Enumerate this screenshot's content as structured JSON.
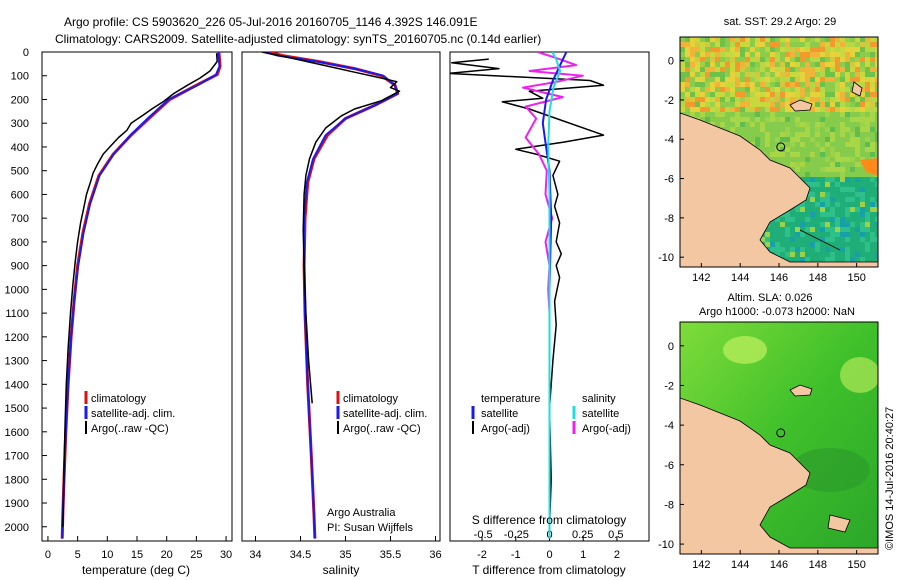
{
  "header": {
    "line1": "Argo profile: CS 5903620_226 05-Jul-2016 20160705_1146 4.392S 146.091E",
    "line2": "Climatology: CARS2009. Satellite-adjusted climatology: synTS_20160705.nc (0.14d earlier)"
  },
  "colors": {
    "climatology": "#dd1111",
    "satellite": "#1a1aee",
    "argo": "#000000",
    "salinity_satellite": "#22dddd",
    "salinity_argo": "#ee22ee",
    "land": "#f4c7a3"
  },
  "chart_data": [
    {
      "type": "line",
      "id": "temperature",
      "xlabel": "temperature (deg C)",
      "xlim": [
        -1,
        31
      ],
      "xticks": [
        "0",
        "5",
        "10",
        "15",
        "20",
        "25",
        "30"
      ],
      "xtick_values": [
        0,
        5,
        10,
        15,
        20,
        25,
        30
      ],
      "ylim": [
        0,
        2060
      ],
      "yticks": [
        "0",
        "100",
        "200",
        "300",
        "400",
        "500",
        "600",
        "700",
        "800",
        "900",
        "1000",
        "1100",
        "1200",
        "1300",
        "1400",
        "1500",
        "1600",
        "1700",
        "1800",
        "1900",
        "2000"
      ],
      "ytick_values": [
        0,
        100,
        200,
        300,
        400,
        500,
        600,
        700,
        800,
        900,
        1000,
        1100,
        1200,
        1300,
        1400,
        1500,
        1600,
        1700,
        1800,
        1900,
        2000
      ],
      "legend": [
        "climatology",
        "satellite-adj. clim.",
        "Argo(..raw -QC)"
      ],
      "series": [
        {
          "name": "climatology",
          "x": [
            28.8,
            29.0,
            28.5,
            25.0,
            20.5,
            17.0,
            14.0,
            11.0,
            8.6,
            7.0,
            5.9,
            5.0,
            4.4,
            3.9,
            3.4,
            3.0,
            2.7,
            2.5,
            2.4
          ],
          "depth": [
            0,
            60,
            95,
            140,
            200,
            280,
            350,
            430,
            520,
            640,
            760,
            900,
            1050,
            1200,
            1400,
            1600,
            1800,
            1950,
            2050
          ]
        },
        {
          "name": "satellite",
          "x": [
            28.7,
            28.9,
            28.3,
            25.2,
            20.3,
            16.8,
            13.9,
            11.1,
            8.7,
            7.1,
            6.0,
            5.1,
            4.4,
            3.9,
            3.4,
            3.0,
            2.7,
            2.5,
            2.4
          ],
          "depth": [
            0,
            60,
            95,
            140,
            200,
            280,
            350,
            430,
            520,
            640,
            760,
            900,
            1050,
            1200,
            1400,
            1600,
            1800,
            1950,
            2050
          ]
        },
        {
          "name": "argo",
          "x": [
            28.4,
            28.5,
            27.3,
            25.6,
            23.5,
            21.2,
            19.4,
            17.5,
            16.1,
            14.0,
            13.3,
            11.9,
            10.6,
            9.3,
            8.4,
            7.6,
            7.2,
            6.5,
            6.0,
            5.5,
            5.0,
            4.6,
            4.2,
            3.8,
            3.4,
            3.1,
            2.9,
            2.7,
            2.6,
            2.5
          ],
          "depth": [
            5,
            40,
            80,
            110,
            140,
            175,
            210,
            240,
            265,
            300,
            330,
            360,
            395,
            430,
            470,
            510,
            545,
            600,
            660,
            720,
            800,
            880,
            980,
            1100,
            1250,
            1400,
            1550,
            1750,
            1900,
            2000
          ]
        }
      ]
    },
    {
      "type": "line",
      "id": "salinity",
      "xlabel": "salinity",
      "xlim": [
        33.85,
        36.05
      ],
      "xticks": [
        "34",
        "34.5",
        "35",
        "35.5",
        "36"
      ],
      "xtick_values": [
        34,
        34.5,
        35,
        35.5,
        36
      ],
      "legend": [
        "climatology",
        "satellite-adj. clim.",
        "Argo(..raw -QC)"
      ],
      "annotation": [
        "Argo Australia",
        "PI: Susan Wijffels"
      ],
      "series": [
        {
          "name": "climatology",
          "x": [
            34.15,
            34.3,
            34.7,
            35.1,
            35.4,
            35.55,
            35.58,
            35.35,
            35.0,
            34.8,
            34.65,
            34.58,
            34.55,
            34.54,
            34.55,
            34.58,
            34.62,
            34.65,
            34.66
          ],
          "depth": [
            0,
            15,
            40,
            70,
            100,
            140,
            175,
            220,
            280,
            350,
            450,
            550,
            700,
            900,
            1100,
            1400,
            1700,
            1950,
            2050
          ]
        },
        {
          "name": "satellite",
          "x": [
            34.1,
            34.25,
            34.68,
            35.1,
            35.42,
            35.55,
            35.58,
            35.35,
            35.0,
            34.78,
            34.64,
            34.57,
            34.54,
            34.54,
            34.55,
            34.58,
            34.62,
            34.65,
            34.66
          ],
          "depth": [
            0,
            15,
            40,
            70,
            100,
            140,
            175,
            220,
            280,
            350,
            450,
            550,
            700,
            900,
            1100,
            1400,
            1700,
            1950,
            2050
          ]
        },
        {
          "name": "argo",
          "x": [
            34.07,
            34.2,
            34.45,
            34.75,
            35.1,
            35.4,
            35.57,
            35.5,
            35.6,
            35.4,
            35.1,
            34.95,
            34.78,
            34.67,
            34.6,
            34.56,
            34.54,
            34.53,
            34.54,
            34.56,
            34.59,
            34.63
          ],
          "depth": [
            0,
            10,
            30,
            55,
            85,
            110,
            125,
            150,
            165,
            205,
            240,
            270,
            320,
            380,
            450,
            520,
            600,
            750,
            900,
            1100,
            1300,
            1480
          ]
        }
      ]
    },
    {
      "type": "line",
      "id": "difference",
      "xlabel": "T difference from climatology",
      "xlabel2": "S difference from climatology",
      "xlim": [
        -2.95,
        2.95
      ],
      "xticks": [
        "-2",
        "-1",
        "0",
        "1",
        "2"
      ],
      "xtick_values": [
        -2,
        -1,
        0,
        1,
        2
      ],
      "xticks_s": [
        "-0.5",
        "-0.25",
        "0",
        "0.25",
        "0.5"
      ],
      "xtick_values_s": [
        -0.5,
        -0.25,
        0,
        0.25,
        0.5
      ],
      "legend": {
        "col1_title": "temperature",
        "col2_title": "salinity",
        "items": [
          "satellite",
          "Argo(-adj)",
          "satellite",
          "Argo(-adj)"
        ]
      },
      "series": [
        {
          "name": "T satellite",
          "x": [
            0.5,
            0.3,
            0.1,
            -0.1,
            -0.2,
            -0.1,
            0.0,
            0.05,
            0.0,
            0.0,
            0.0
          ],
          "depth": [
            0,
            60,
            120,
            200,
            300,
            400,
            500,
            700,
            1000,
            1500,
            2050
          ]
        },
        {
          "name": "T argo",
          "x": [
            -1.8,
            -2.9,
            -1.5,
            -3.0,
            1.2,
            1.6,
            -0.6,
            -0.2,
            -1.4,
            -0.6,
            1.6,
            0.4,
            -1.0,
            -0.4,
            0.3,
            0.1,
            0.25,
            0.15,
            0.3,
            0.2,
            0.35,
            0.2,
            0.3,
            0.15,
            0.2,
            0.1,
            0.0,
            0.05,
            0.0
          ],
          "depth": [
            30,
            45,
            70,
            90,
            120,
            140,
            165,
            195,
            210,
            240,
            350,
            380,
            410,
            430,
            460,
            520,
            600,
            650,
            720,
            800,
            850,
            900,
            950,
            1050,
            1150,
            1300,
            1500,
            1800,
            2000
          ]
        },
        {
          "name": "S satellite",
          "x": [
            0.02,
            0.05,
            0.08,
            0.03,
            0.0,
            -0.01,
            0.0,
            0.0,
            0.0,
            0.0
          ],
          "depth": [
            0,
            30,
            80,
            150,
            250,
            400,
            600,
            900,
            1400,
            2050
          ]
        },
        {
          "name": "S argo",
          "x": [
            -0.09,
            0.05,
            0.2,
            -0.15,
            0.25,
            0.06,
            -0.2,
            0.1,
            -0.18,
            -0.1,
            -0.18,
            -0.08,
            -0.02,
            -0.03,
            0.02,
            -0.03,
            0.0,
            -0.01,
            0.0
          ],
          "depth": [
            0,
            25,
            55,
            80,
            100,
            125,
            150,
            190,
            230,
            280,
            360,
            430,
            500,
            600,
            700,
            800,
            900,
            1000,
            1100
          ]
        }
      ]
    },
    {
      "type": "heatmap",
      "id": "sst-map",
      "title": "sat. SST: 29.2 Argo: 29",
      "xticks": [
        "142",
        "144",
        "146",
        "148",
        "150"
      ],
      "xtick_values": [
        142,
        144,
        146,
        148,
        150
      ],
      "yticks": [
        "0",
        "-2",
        "-4",
        "-6",
        "-8",
        "-10"
      ],
      "ytick_values": [
        0,
        -2,
        -4,
        -6,
        -8,
        -10
      ],
      "xlim": [
        140.9,
        151.1
      ],
      "ylim": [
        -10.5,
        1.2
      ],
      "float_position": [
        146.091,
        -4.392
      ]
    },
    {
      "type": "heatmap",
      "id": "sla-map",
      "title": "Altim. SLA: 0.026",
      "subtitle": "Argo h1000: -0.073 h2000: NaN",
      "xticks": [
        "142",
        "144",
        "146",
        "148",
        "150"
      ],
      "xtick_values": [
        142,
        144,
        146,
        148,
        150
      ],
      "yticks": [
        "0",
        "-2",
        "-4",
        "-6",
        "-8",
        "-10"
      ],
      "ytick_values": [
        0,
        -2,
        -4,
        -6,
        -8,
        -10
      ],
      "xlim": [
        140.9,
        151.1
      ],
      "ylim": [
        -10.5,
        1.2
      ],
      "float_position": [
        146.091,
        -4.392
      ]
    }
  ],
  "footer": {
    "stamp": "©IMOS 14-Jul-2016 20:40:27"
  }
}
